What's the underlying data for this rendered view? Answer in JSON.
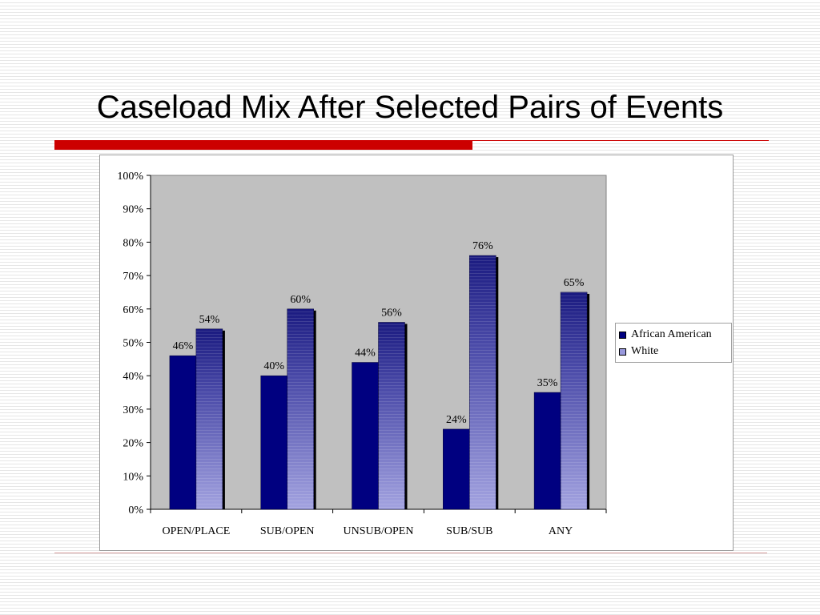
{
  "slide": {
    "title": "Caseload Mix After Selected Pairs of Events"
  },
  "colors": {
    "accent_red": "#cc0000",
    "rule_light": "#d9a0a0",
    "plot_background": "#c0c0c0",
    "series_african_american": "#000080",
    "series_white": "#9999dd"
  },
  "chart_data": {
    "type": "bar",
    "title": "",
    "xlabel": "",
    "ylabel": "",
    "ylim": [
      0,
      100
    ],
    "yticks": [
      "0%",
      "10%",
      "20%",
      "30%",
      "40%",
      "50%",
      "60%",
      "70%",
      "80%",
      "90%",
      "100%"
    ],
    "categories": [
      "OPEN/PLACE",
      "SUB/OPEN",
      "UNSUB/OPEN",
      "SUB/SUB",
      "ANY"
    ],
    "series": [
      {
        "name": "African American",
        "values": [
          46,
          40,
          44,
          24,
          35
        ],
        "labels": [
          "46%",
          "40%",
          "44%",
          "24%",
          "35%"
        ],
        "color": "#000080"
      },
      {
        "name": "White",
        "values": [
          54,
          60,
          56,
          76,
          65
        ],
        "labels": [
          "54%",
          "60%",
          "56%",
          "76%",
          "65%"
        ],
        "color": "#9999dd"
      }
    ],
    "grid": false,
    "legend_position": "right"
  }
}
